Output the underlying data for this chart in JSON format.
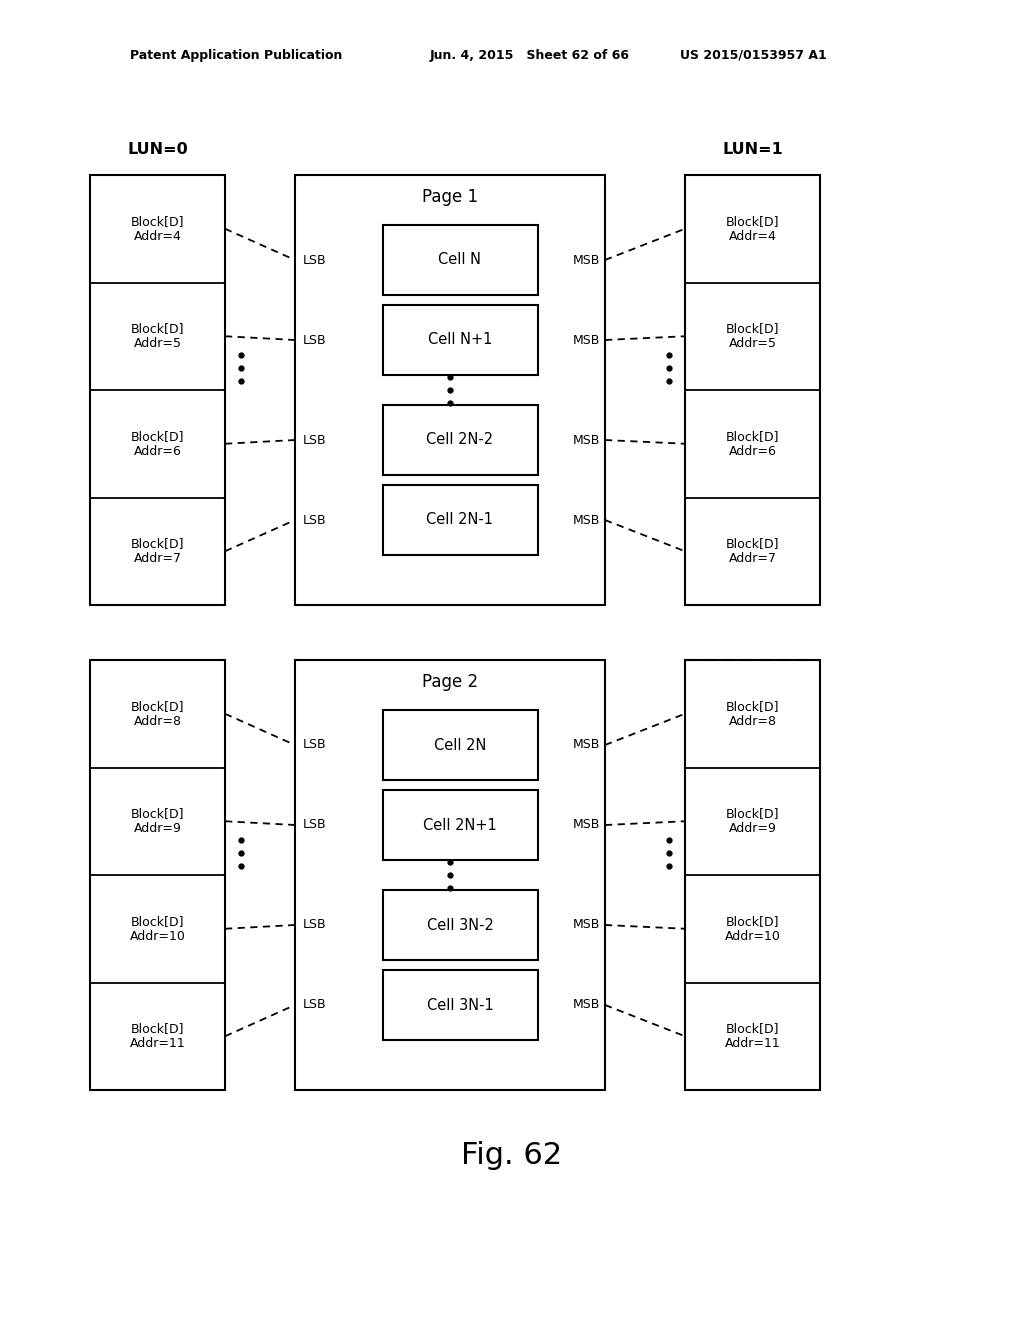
{
  "background_color": "#ffffff",
  "header_left": "Patent Application Publication",
  "header_mid": "Jun. 4, 2015   Sheet 62 of 66",
  "header_right": "US 2015/0153957 A1",
  "figure_label": "Fig. 62",
  "lun0_label": "LUN=0",
  "lun1_label": "LUN=1",
  "page1_label": "Page 1",
  "page2_label": "Page 2",
  "lun0_blocks_top": [
    "Block[D]\nAddr=4",
    "Block[D]\nAddr=5",
    "Block[D]\nAddr=6",
    "Block[D]\nAddr=7"
  ],
  "lun1_blocks_top": [
    "Block[D]\nAddr=4",
    "Block[D]\nAddr=5",
    "Block[D]\nAddr=6",
    "Block[D]\nAddr=7"
  ],
  "page1_cells": [
    "Cell N",
    "Cell N+1",
    "Cell 2N-2",
    "Cell 2N-1"
  ],
  "lun0_blocks_bot": [
    "Block[D]\nAddr=8",
    "Block[D]\nAddr=9",
    "Block[D]\nAddr=10",
    "Block[D]\nAddr=11"
  ],
  "lun1_blocks_bot": [
    "Block[D]\nAddr=8",
    "Block[D]\nAddr=9",
    "Block[D]\nAddr=10",
    "Block[D]\nAddr=11"
  ],
  "page2_cells": [
    "Cell 2N",
    "Cell 2N+1",
    "Cell 3N-2",
    "Cell 3N-1"
  ]
}
